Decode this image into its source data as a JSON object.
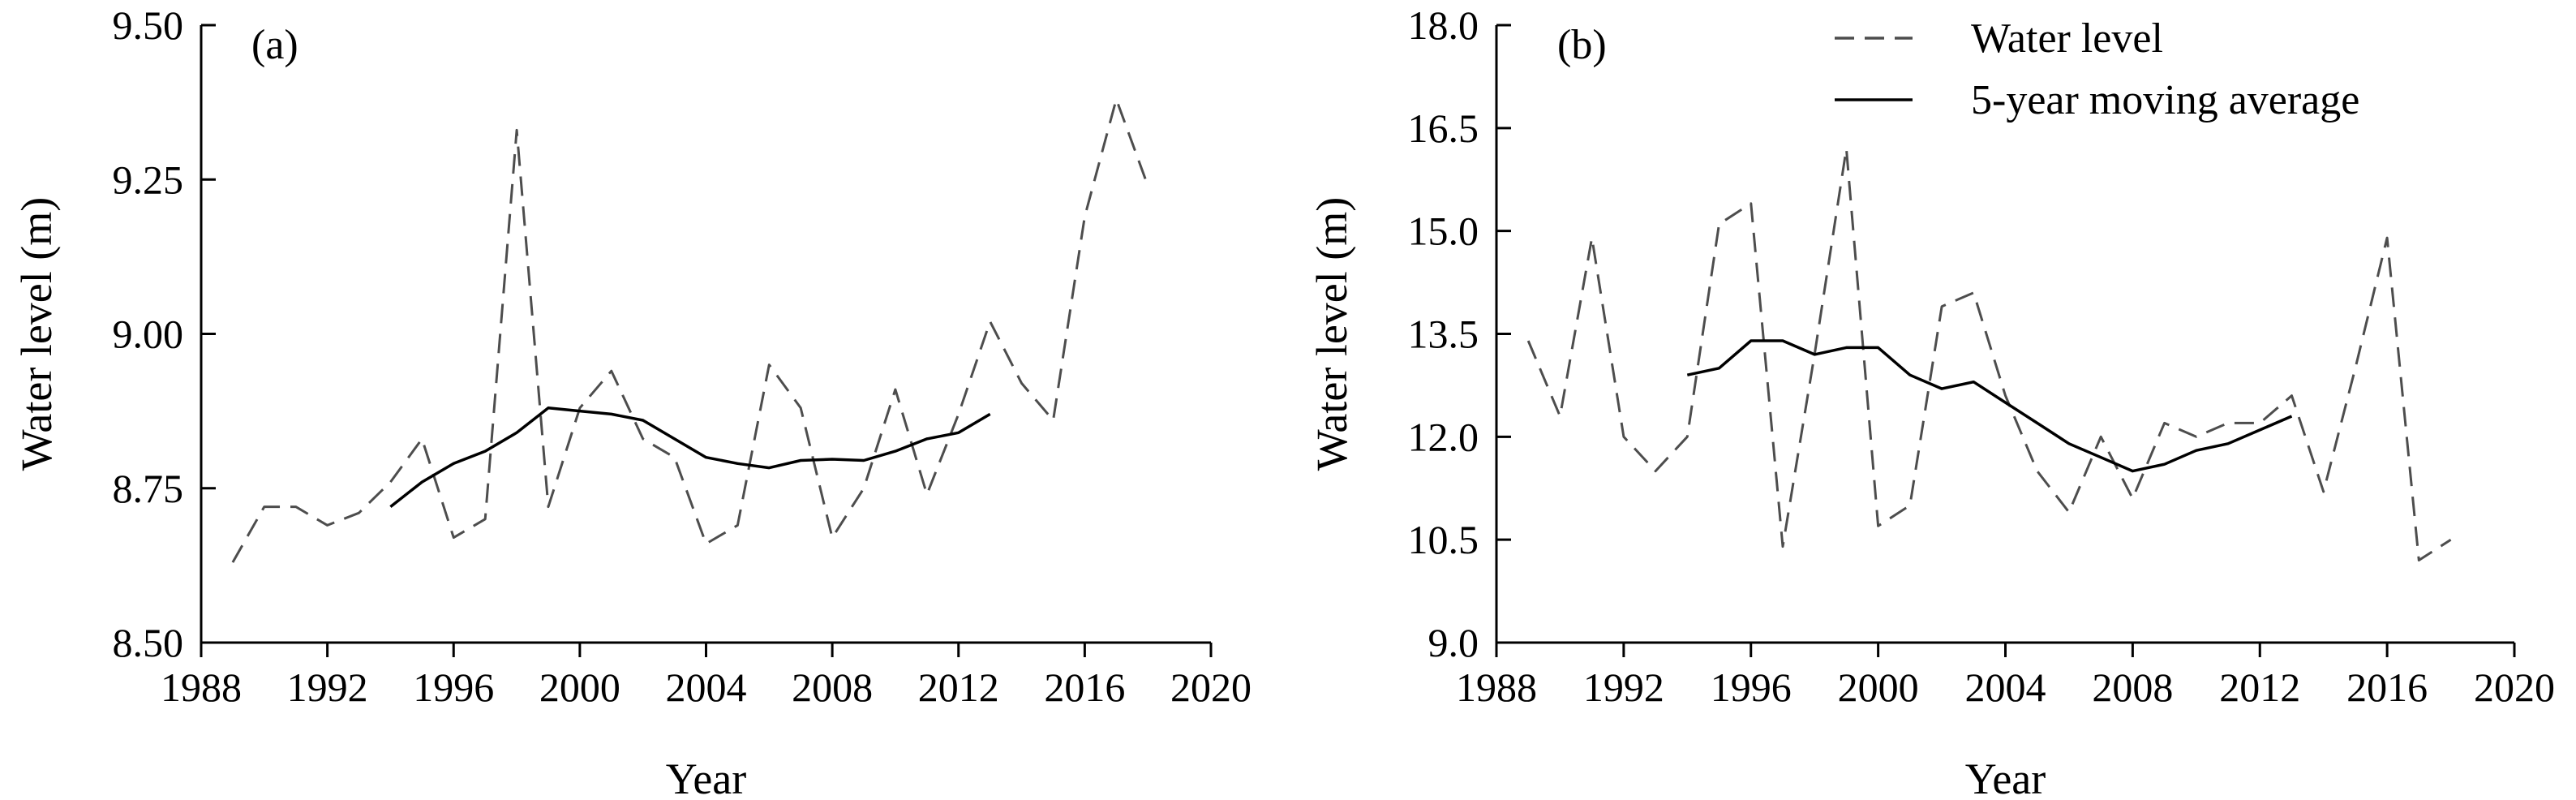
{
  "chart_data": [
    {
      "panel_label": "(a)",
      "type": "line",
      "xlabel": "Year",
      "ylabel": "Water level (m)",
      "xlim": [
        1988,
        2020
      ],
      "ylim": [
        8.5,
        9.5
      ],
      "xticks": [
        "1988",
        "1992",
        "1996",
        "2000",
        "2004",
        "2008",
        "2012",
        "2016",
        "2020"
      ],
      "yticks": [
        "8.50",
        "8.75",
        "9.00",
        "9.25",
        "9.50"
      ],
      "grid": false,
      "series": [
        {
          "name": "Water level",
          "style": "dashed",
          "color": "#4d4d4d",
          "x": [
            1989,
            1990,
            1991,
            1992,
            1993,
            1994,
            1995,
            1996,
            1997,
            1998,
            1999,
            2000,
            2001,
            2002,
            2003,
            2004,
            2005,
            2006,
            2007,
            2008,
            2009,
            2010,
            2011,
            2012,
            2013,
            2014,
            2015,
            2016,
            2017,
            2018
          ],
          "y": [
            8.63,
            8.72,
            8.72,
            8.69,
            8.71,
            8.76,
            8.83,
            8.67,
            8.7,
            9.33,
            8.72,
            8.88,
            8.94,
            8.83,
            8.8,
            8.66,
            8.69,
            8.95,
            8.88,
            8.67,
            8.75,
            8.91,
            8.74,
            8.87,
            9.02,
            8.92,
            8.86,
            9.19,
            9.38,
            9.24
          ]
        },
        {
          "name": "5-year moving average",
          "style": "solid",
          "color": "#000000",
          "x": [
            1994,
            1995,
            1996,
            1997,
            1998,
            1999,
            2000,
            2001,
            2002,
            2003,
            2004,
            2005,
            2006,
            2007,
            2008,
            2009,
            2010,
            2011,
            2012,
            2013
          ],
          "y": [
            8.72,
            8.76,
            8.79,
            8.81,
            8.84,
            8.88,
            8.875,
            8.87,
            8.86,
            8.83,
            8.8,
            8.79,
            8.783,
            8.795,
            8.797,
            8.795,
            8.81,
            8.83,
            8.84,
            8.87
          ]
        }
      ]
    },
    {
      "panel_label": "(b)",
      "type": "line",
      "xlabel": "Year",
      "ylabel": "Water level (m)",
      "xlim": [
        1988,
        2020
      ],
      "ylim": [
        9.0,
        18.0
      ],
      "xticks": [
        "1988",
        "1992",
        "1996",
        "2000",
        "2004",
        "2008",
        "2012",
        "2016",
        "2020"
      ],
      "yticks": [
        "9.0",
        "10.5",
        "12.0",
        "13.5",
        "15.0",
        "16.5",
        "18.0"
      ],
      "grid": false,
      "legend": "top-right",
      "series": [
        {
          "name": "Water level",
          "style": "dashed",
          "color": "#4d4d4d",
          "x": [
            1989,
            1990,
            1991,
            1992,
            1993,
            1994,
            1995,
            1996,
            1997,
            1998,
            1999,
            2000,
            2001,
            2002,
            2003,
            2004,
            2005,
            2006,
            2007,
            2008,
            2009,
            2010,
            2011,
            2012,
            2013,
            2014,
            2015,
            2016,
            2017,
            2018
          ],
          "y": [
            13.4,
            12.3,
            14.9,
            12.0,
            11.5,
            12.0,
            15.1,
            15.4,
            10.4,
            13.2,
            16.2,
            10.7,
            11.0,
            13.9,
            14.1,
            12.6,
            11.5,
            10.9,
            12.0,
            11.1,
            12.2,
            12.0,
            12.2,
            12.2,
            12.6,
            11.2,
            13.0,
            14.9,
            10.2,
            10.5
          ]
        },
        {
          "name": "5-year moving average",
          "style": "solid",
          "color": "#000000",
          "x": [
            1994,
            1995,
            1996,
            1997,
            1998,
            1999,
            2000,
            2001,
            2002,
            2003,
            2004,
            2005,
            2006,
            2007,
            2008,
            2009,
            2010,
            2011,
            2012,
            2013
          ],
          "y": [
            12.9,
            13.0,
            13.4,
            13.4,
            13.2,
            13.3,
            13.3,
            12.9,
            12.7,
            12.8,
            12.5,
            12.2,
            11.9,
            11.7,
            11.5,
            11.6,
            11.8,
            11.9,
            12.1,
            12.3
          ]
        }
      ]
    }
  ]
}
